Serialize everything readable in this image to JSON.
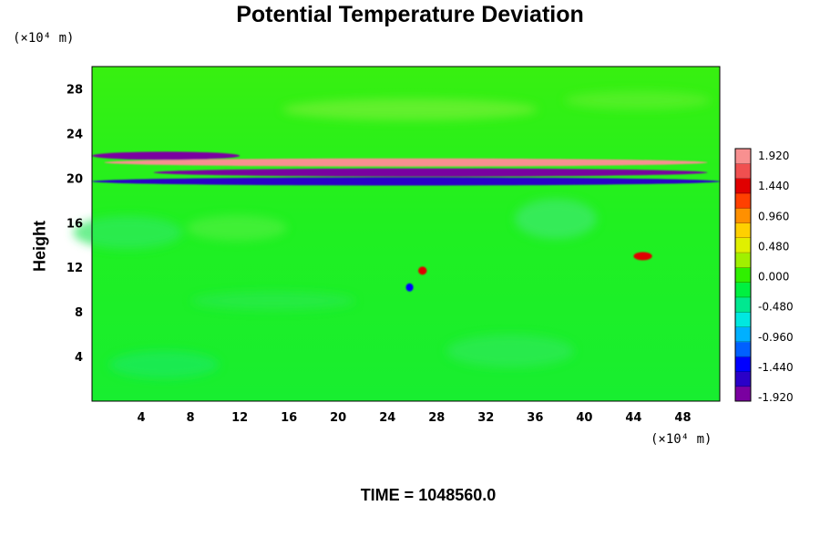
{
  "chart_data": {
    "type": "heatmap",
    "title": "Potential Temperature Deviation",
    "xlabel": "",
    "ylabel": "Height",
    "x_unit_label": "(×10⁴ m)",
    "y_unit_label": "(×10⁴ m)",
    "xlim": [
      0,
      51
    ],
    "ylim": [
      0,
      30
    ],
    "x_ticks": [
      4,
      8,
      12,
      16,
      20,
      24,
      28,
      32,
      36,
      40,
      44,
      48
    ],
    "y_ticks": [
      4,
      8,
      12,
      16,
      20,
      24,
      28
    ],
    "colorbar": {
      "min": -1.92,
      "max": 1.92,
      "labels": [
        "1.920",
        "1.440",
        "0.960",
        "0.480",
        "0.000",
        "-0.480",
        "-0.960",
        "-1.440",
        "-1.920"
      ],
      "colors": [
        "#7a00a0",
        "#2a00c8",
        "#0000ff",
        "#0060ff",
        "#00b0ff",
        "#00e8e0",
        "#00e890",
        "#00f040",
        "#30f000",
        "#a0f000",
        "#e0f000",
        "#ffd000",
        "#ff9000",
        "#ff4000",
        "#e00000",
        "#f05050",
        "#f89090"
      ]
    },
    "features": [
      {
        "name": "warm band",
        "x": [
          1,
          50
        ],
        "y": 21.4,
        "value": 1.9
      },
      {
        "name": "cold band",
        "x": [
          5,
          50
        ],
        "y": 20.5,
        "value": -1.9
      },
      {
        "name": "cold band",
        "x": [
          0,
          12
        ],
        "y": 22.0,
        "value": -1.9
      },
      {
        "name": "cold band",
        "x": [
          0,
          51
        ],
        "y": 19.7,
        "value": -1.7
      },
      {
        "name": "warm anomaly",
        "x": [
          26.5,
          27.2
        ],
        "y": 11.7,
        "value": 1.5
      },
      {
        "name": "cold anomaly",
        "x": [
          25.5,
          26.1
        ],
        "y": 10.2,
        "value": -1.5
      },
      {
        "name": "warm anomaly",
        "x": [
          44,
          45.5
        ],
        "y": 13.0,
        "value": 1.4
      }
    ],
    "footer": {
      "label": "TIME =",
      "value": "1048560.0"
    }
  }
}
